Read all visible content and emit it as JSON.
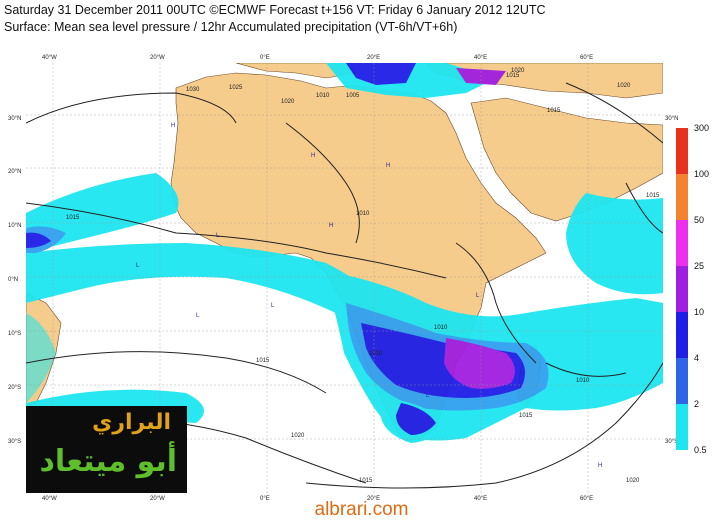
{
  "header": {
    "line1": "Saturday 31 December 2011 00UTC ©ECMWF Forecast t+156 VT: Friday 6 January 2012 12UTC",
    "line2": "Surface: Mean sea level pressure / 12hr Accumulated precipitation (VT-6h/VT+6h)"
  },
  "axes": {
    "lon_labels": [
      "40°W",
      "20°W",
      "0°E",
      "20°E",
      "40°E",
      "60°E"
    ],
    "lat_labels": [
      "30°N",
      "20°N",
      "10°N",
      "0°N",
      "10°S",
      "20°S",
      "30°S"
    ]
  },
  "isobars": [
    "1030",
    "1025",
    "1020",
    "1015",
    "1010",
    "1010",
    "1015",
    "1020",
    "1015",
    "1010",
    "1020",
    "1015",
    "1010",
    "1015",
    "1020",
    "1020",
    "1015",
    "1005",
    "1015",
    "1010"
  ],
  "pressure_markers": [
    "H",
    "H",
    "H",
    "H",
    "L",
    "L",
    "L",
    "L",
    "H",
    "L",
    "L"
  ],
  "legend": {
    "items": [
      {
        "label": "300",
        "color": "#e8321e"
      },
      {
        "label": "100",
        "color": "#f58231"
      },
      {
        "label": "50",
        "color": "#ee30ee"
      },
      {
        "label": "25",
        "color": "#a01ee0"
      },
      {
        "label": "10",
        "color": "#1e1ee6"
      },
      {
        "label": "4",
        "color": "#2e64e8"
      },
      {
        "label": "2",
        "color": "#2fa0f0"
      },
      {
        "label": "0.5",
        "color": "#1ee6f0"
      }
    ]
  },
  "colors": {
    "land": "#f5cc8c",
    "ocean": "#ffffff",
    "precip_light": "#1ee6f0",
    "precip_mid": "#2fa0f0",
    "precip_heavy": "#1e1ee6",
    "precip_very_heavy": "#a01ee0"
  },
  "logo": {
    "line1": "البراري",
    "line2": "أبو ميتعاد"
  },
  "site": "albrari.com"
}
